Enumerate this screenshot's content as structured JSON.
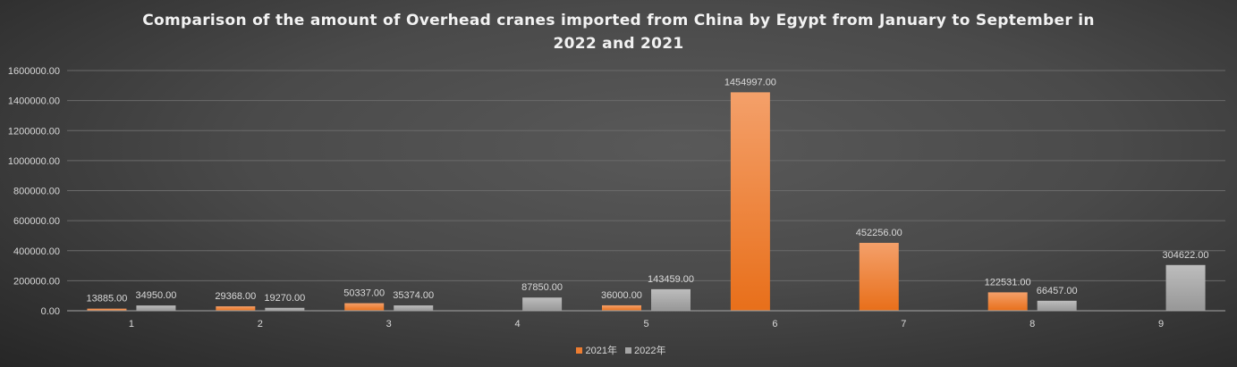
{
  "chart_data": {
    "type": "bar",
    "title": "Comparison of the amount of Overhead cranes imported from China by Egypt from January to September in 2022 and 2021",
    "title_lines": [
      "Comparison of the amount of Overhead cranes imported from China by Egypt from January to September in",
      "2022 and 2021"
    ],
    "xlabel": "",
    "ylabel": "",
    "categories": [
      "1",
      "2",
      "3",
      "4",
      "5",
      "6",
      "7",
      "8",
      "9"
    ],
    "series": [
      {
        "name": "2021年",
        "color": "#ED7D31",
        "values": [
          13885.0,
          29368.0,
          50337.0,
          null,
          36000.0,
          1454997.0,
          452256.0,
          122531.0,
          null
        ]
      },
      {
        "name": "2022年",
        "color": "#A5A5A5",
        "values": [
          34950.0,
          19270.0,
          35374.0,
          87850.0,
          143459.0,
          null,
          null,
          66457.0,
          304622.0
        ]
      }
    ],
    "ylim": [
      0,
      1600000
    ],
    "yticks": [
      "0.00",
      "200000.00",
      "400000.00",
      "600000.00",
      "800000.00",
      "1000000.00",
      "1200000.00",
      "1400000.00",
      "1600000.00"
    ],
    "grid": true,
    "legend_position": "bottom",
    "data_labels": true
  }
}
